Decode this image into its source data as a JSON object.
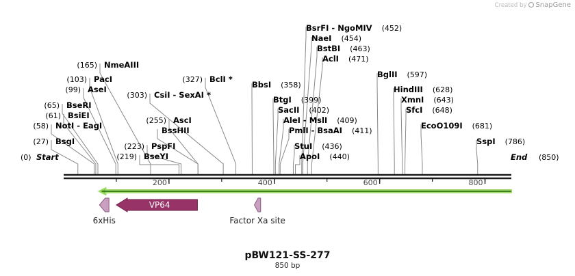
{
  "watermark": {
    "created_by": "Created by",
    "brand": "SnapGene"
  },
  "plasmid": {
    "name": "pBW121-SS-277",
    "length_label": "850 bp",
    "length_bp": 850
  },
  "map_ends": {
    "start_label": "Start",
    "start_pos": "(0)",
    "end_label": "End",
    "end_pos": "(850)"
  },
  "ruler_ticks": [
    "200",
    "400",
    "600",
    "800"
  ],
  "sites": [
    {
      "id": "bsgi",
      "name": "BsgI",
      "pos": "(27)",
      "bp": 27,
      "pos_first": true
    },
    {
      "id": "noti-eagi",
      "name": "NotI  -  EagI",
      "pos": "(58)",
      "bp": 58,
      "pos_first": true
    },
    {
      "id": "bsiei",
      "name": "BsiEI",
      "pos": "(61)",
      "bp": 61,
      "pos_first": true
    },
    {
      "id": "beri",
      "name": "BseRI",
      "pos": "(65)",
      "bp": 65,
      "pos_first": true
    },
    {
      "id": "asei",
      "name": "AseI",
      "pos": "(99)",
      "bp": 99,
      "pos_first": true
    },
    {
      "id": "paci",
      "name": "PacI",
      "pos": "(103)",
      "bp": 103,
      "pos_first": true
    },
    {
      "id": "nmeaiii",
      "name": "NmeAIII",
      "pos": "(165)",
      "bp": 165,
      "pos_first": true
    },
    {
      "id": "bseyi",
      "name": "BseYI",
      "pos": "(219)",
      "bp": 219,
      "pos_first": true
    },
    {
      "id": "pspfi",
      "name": "PspFI",
      "pos": "(223)",
      "bp": 223,
      "pos_first": true
    },
    {
      "id": "bsshii",
      "name": "BssHII",
      "pos": "",
      "bp": 255,
      "pos_first": true
    },
    {
      "id": "asci",
      "name": "AscI",
      "pos": "(255)",
      "bp": 255,
      "pos_first": true
    },
    {
      "id": "csii-sexai",
      "name": "CsiI  -  SexAI *",
      "pos": "(303)",
      "bp": 303,
      "pos_first": true
    },
    {
      "id": "bcli",
      "name": "BclI *",
      "pos": "(327)",
      "bp": 327,
      "pos_first": true
    },
    {
      "id": "bbsi",
      "name": "BbsI",
      "pos": "(358)",
      "bp": 358,
      "pos_first": false
    },
    {
      "id": "bsrfi-ngomiv",
      "name": "BsrFI  -  NgoMIV",
      "pos": "(452)",
      "bp": 452,
      "pos_first": false
    },
    {
      "id": "naei",
      "name": "NaeI",
      "pos": "(454)",
      "bp": 454,
      "pos_first": false
    },
    {
      "id": "bstbi",
      "name": "BstBI",
      "pos": "(463)",
      "bp": 463,
      "pos_first": false
    },
    {
      "id": "acli",
      "name": "AclI",
      "pos": "(471)",
      "bp": 471,
      "pos_first": false
    },
    {
      "id": "bgtii",
      "name": "BtgI",
      "pos": "(399)",
      "bp": 399,
      "pos_first": false
    },
    {
      "id": "sacii",
      "name": "SacII",
      "pos": "(402)",
      "bp": 402,
      "pos_first": false
    },
    {
      "id": "alei-msli",
      "name": "AleI  -  MslI",
      "pos": "(409)",
      "bp": 409,
      "pos_first": false
    },
    {
      "id": "pmli-bsaai",
      "name": "PmlI  -  BsaAI",
      "pos": "(411)",
      "bp": 411,
      "pos_first": false
    },
    {
      "id": "stui",
      "name": "StuI",
      "pos": "(436)",
      "bp": 436,
      "pos_first": false
    },
    {
      "id": "apoi",
      "name": "ApoI",
      "pos": "(440)",
      "bp": 440,
      "pos_first": false
    },
    {
      "id": "bglii",
      "name": "BglII",
      "pos": "(597)",
      "bp": 597,
      "pos_first": false
    },
    {
      "id": "hindiii",
      "name": "HindIII",
      "pos": "(628)",
      "bp": 628,
      "pos_first": false
    },
    {
      "id": "xmni",
      "name": "XmnI",
      "pos": "(643)",
      "bp": 643,
      "pos_first": false
    },
    {
      "id": "sfci",
      "name": "SfcI",
      "pos": "(648)",
      "bp": 648,
      "pos_first": false
    },
    {
      "id": "eco0109i",
      "name": "EcoO109I",
      "pos": "(681)",
      "bp": 681,
      "pos_first": false
    },
    {
      "id": "sspi",
      "name": "SspI",
      "pos": "(786)",
      "bp": 786,
      "pos_first": false
    }
  ],
  "features": [
    {
      "id": "his6",
      "label": "6xHis",
      "start_bp": 68,
      "end_bp": 86,
      "direction": "reverse",
      "color": "#c9a0c0"
    },
    {
      "id": "vp64",
      "label": "VP64",
      "start_bp": 100,
      "end_bp": 254,
      "direction": "reverse",
      "color": "#973366"
    },
    {
      "id": "factor-xa",
      "label": "Factor Xa site",
      "start_bp": 362,
      "end_bp": 374,
      "direction": "reverse",
      "color": "#c9a0c0"
    }
  ],
  "orf": {
    "start_bp": 67,
    "end_bp": 850,
    "direction": "reverse",
    "color": "#7cc242"
  },
  "colors": {
    "backbone": "#1a1a1a",
    "site_line": "#888888"
  }
}
